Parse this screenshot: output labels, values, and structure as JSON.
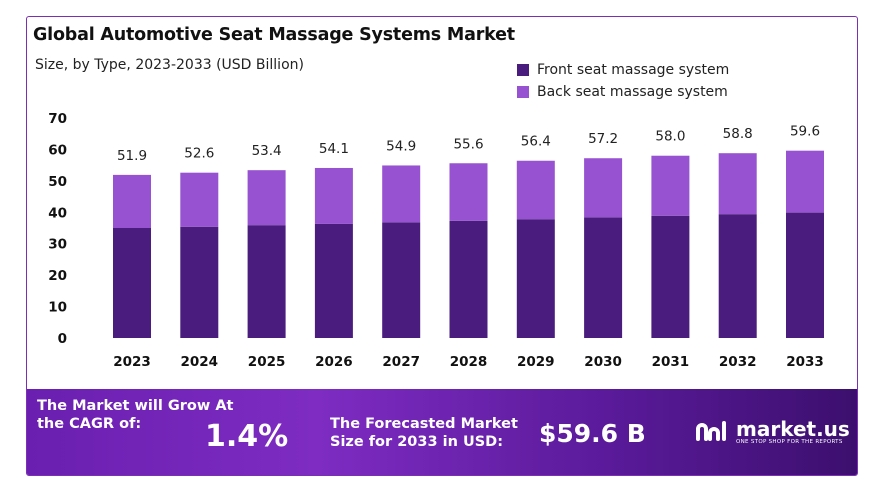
{
  "header": {
    "title": "Global Automotive Seat Massage Systems Market",
    "subtitle": "Size, by Type, 2023-2033 (USD Billion)"
  },
  "legend": [
    {
      "label": "Front seat massage system",
      "color": "#4a1c7e"
    },
    {
      "label": "Back seat massage system",
      "color": "#9652d0"
    }
  ],
  "chart_data": {
    "type": "bar",
    "stacked": true,
    "categories": [
      "2023",
      "2024",
      "2025",
      "2026",
      "2027",
      "2028",
      "2029",
      "2030",
      "2031",
      "2032",
      "2033"
    ],
    "series": [
      {
        "name": "Front seat massage system",
        "values": [
          35.0,
          35.4,
          35.9,
          36.3,
          36.8,
          37.3,
          37.8,
          38.4,
          38.9,
          39.4,
          39.9
        ]
      },
      {
        "name": "Back seat massage system",
        "values": [
          16.9,
          17.2,
          17.5,
          17.8,
          18.1,
          18.3,
          18.6,
          18.8,
          19.1,
          19.4,
          19.7
        ]
      }
    ],
    "totals": [
      "51.9",
      "52.6",
      "53.4",
      "54.1",
      "54.9",
      "55.6",
      "56.4",
      "57.2",
      "58.0",
      "58.8",
      "59.6"
    ],
    "ylim": [
      0,
      70
    ],
    "yticks": [
      0,
      10,
      20,
      30,
      40,
      50,
      60,
      70
    ],
    "grid": false,
    "legend_position": "top-right"
  },
  "banner": {
    "cagr_label": "The Market will Grow At the CAGR of:",
    "cagr_value": "1.4%",
    "forecast_label": "The Forecasted Market Size for 2033 in USD:",
    "forecast_value": "$59.6 B",
    "logo_name": "market.us",
    "logo_tagline": "ONE STOP SHOP FOR THE REPORTS"
  }
}
